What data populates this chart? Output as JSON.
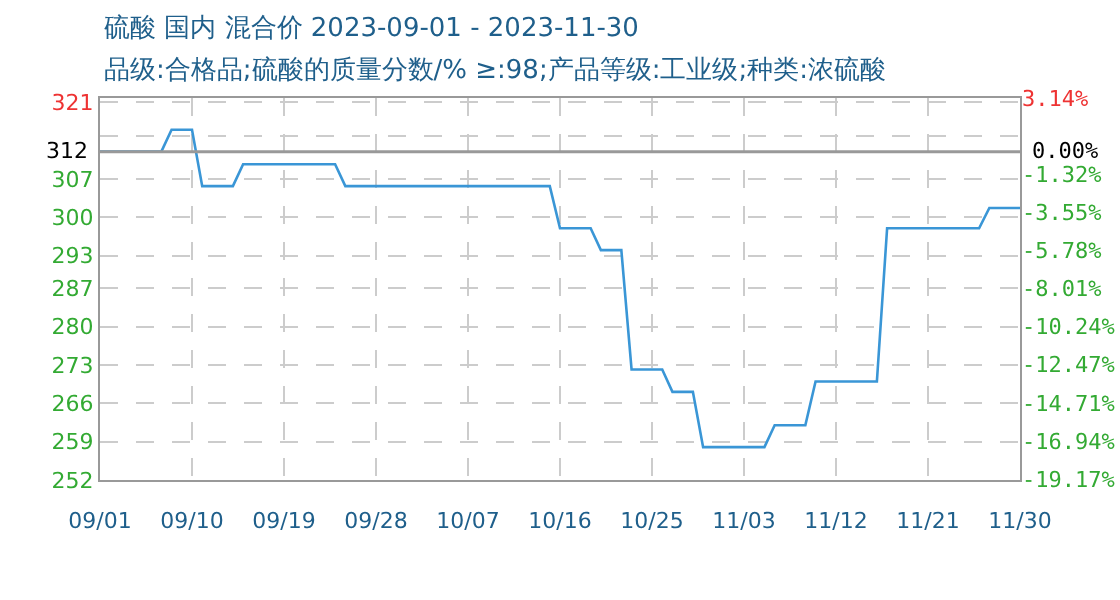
{
  "chart_data": {
    "type": "line",
    "title": "硫酸 国内 混合价 2023-09-01 - 2023-11-30",
    "subtitle": "品级:合格品;硫酸的质量分数/% ≥:98;产品等级:工业级;种类:浓硫酸",
    "x": [
      "2023-09-01",
      "2023-09-07",
      "2023-09-08",
      "2023-09-10",
      "2023-09-11",
      "2023-09-14",
      "2023-09-15",
      "2023-09-24",
      "2023-09-25",
      "2023-10-15",
      "2023-10-16",
      "2023-10-19",
      "2023-10-20",
      "2023-10-22",
      "2023-10-23",
      "2023-10-26",
      "2023-10-27",
      "2023-10-29",
      "2023-10-30",
      "2023-11-05",
      "2023-11-06",
      "2023-11-09",
      "2023-11-10",
      "2023-11-16",
      "2023-11-17",
      "2023-11-26",
      "2023-11-27",
      "2023-11-30"
    ],
    "series": [
      {
        "color": "#3a96d6",
        "values": [
          312,
          312,
          316,
          316,
          305.7,
          305.7,
          309.7,
          309.7,
          305.7,
          305.7,
          298,
          298,
          294,
          294,
          272.2,
          272.2,
          268.1,
          268.1,
          258,
          258,
          262,
          262,
          270,
          270,
          298,
          298,
          301.7,
          301.7
        ]
      }
    ],
    "xlim": [
      "2023-09-01",
      "2023-11-30"
    ],
    "xticks": [
      {
        "value": "2023-09-01",
        "label": "09/01"
      },
      {
        "value": "2023-09-10",
        "label": "09/10"
      },
      {
        "value": "2023-09-19",
        "label": "09/19"
      },
      {
        "value": "2023-09-28",
        "label": "09/28"
      },
      {
        "value": "2023-10-07",
        "label": "10/07"
      },
      {
        "value": "2023-10-16",
        "label": "10/16"
      },
      {
        "value": "2023-10-25",
        "label": "10/25"
      },
      {
        "value": "2023-11-03",
        "label": "11/03"
      },
      {
        "value": "2023-11-12",
        "label": "11/12"
      },
      {
        "value": "2023-11-21",
        "label": "11/21"
      },
      {
        "value": "2023-11-30",
        "label": "11/30"
      }
    ],
    "ylim": [
      252,
      321.8
    ],
    "yticks": [
      252,
      259,
      266,
      273,
      280,
      287,
      293,
      300,
      307,
      {
        "value": 314.84,
        "label": null
      },
      321
    ],
    "y2lim": [
      -19.23,
      3.14
    ],
    "y2ticks": [
      {
        "value": -19.17,
        "label": "-19.17%"
      },
      {
        "value": -16.94,
        "label": "-16.94%"
      },
      {
        "value": -14.71,
        "label": "-14.71%"
      },
      {
        "value": -12.47,
        "label": "-12.47%"
      },
      {
        "value": -10.24,
        "label": "-10.24%"
      },
      {
        "value": -8.01,
        "label": "-8.01%"
      },
      {
        "value": -5.78,
        "label": "-5.78%"
      },
      {
        "value": -3.55,
        "label": "-3.55%"
      },
      {
        "value": -1.32,
        "label": "-1.32%"
      },
      {
        "value": 3.14,
        "label": "3.14%"
      }
    ],
    "ref_lines": [
      {
        "axis": "y",
        "value": 312,
        "label": "312",
        "color": "#999999"
      }
    ],
    "annotations": [
      {
        "text": "0.00%",
        "x": "2023-11-30",
        "y": 312
      }
    ],
    "grid": true,
    "marker": "none",
    "line_style": "solid"
  }
}
